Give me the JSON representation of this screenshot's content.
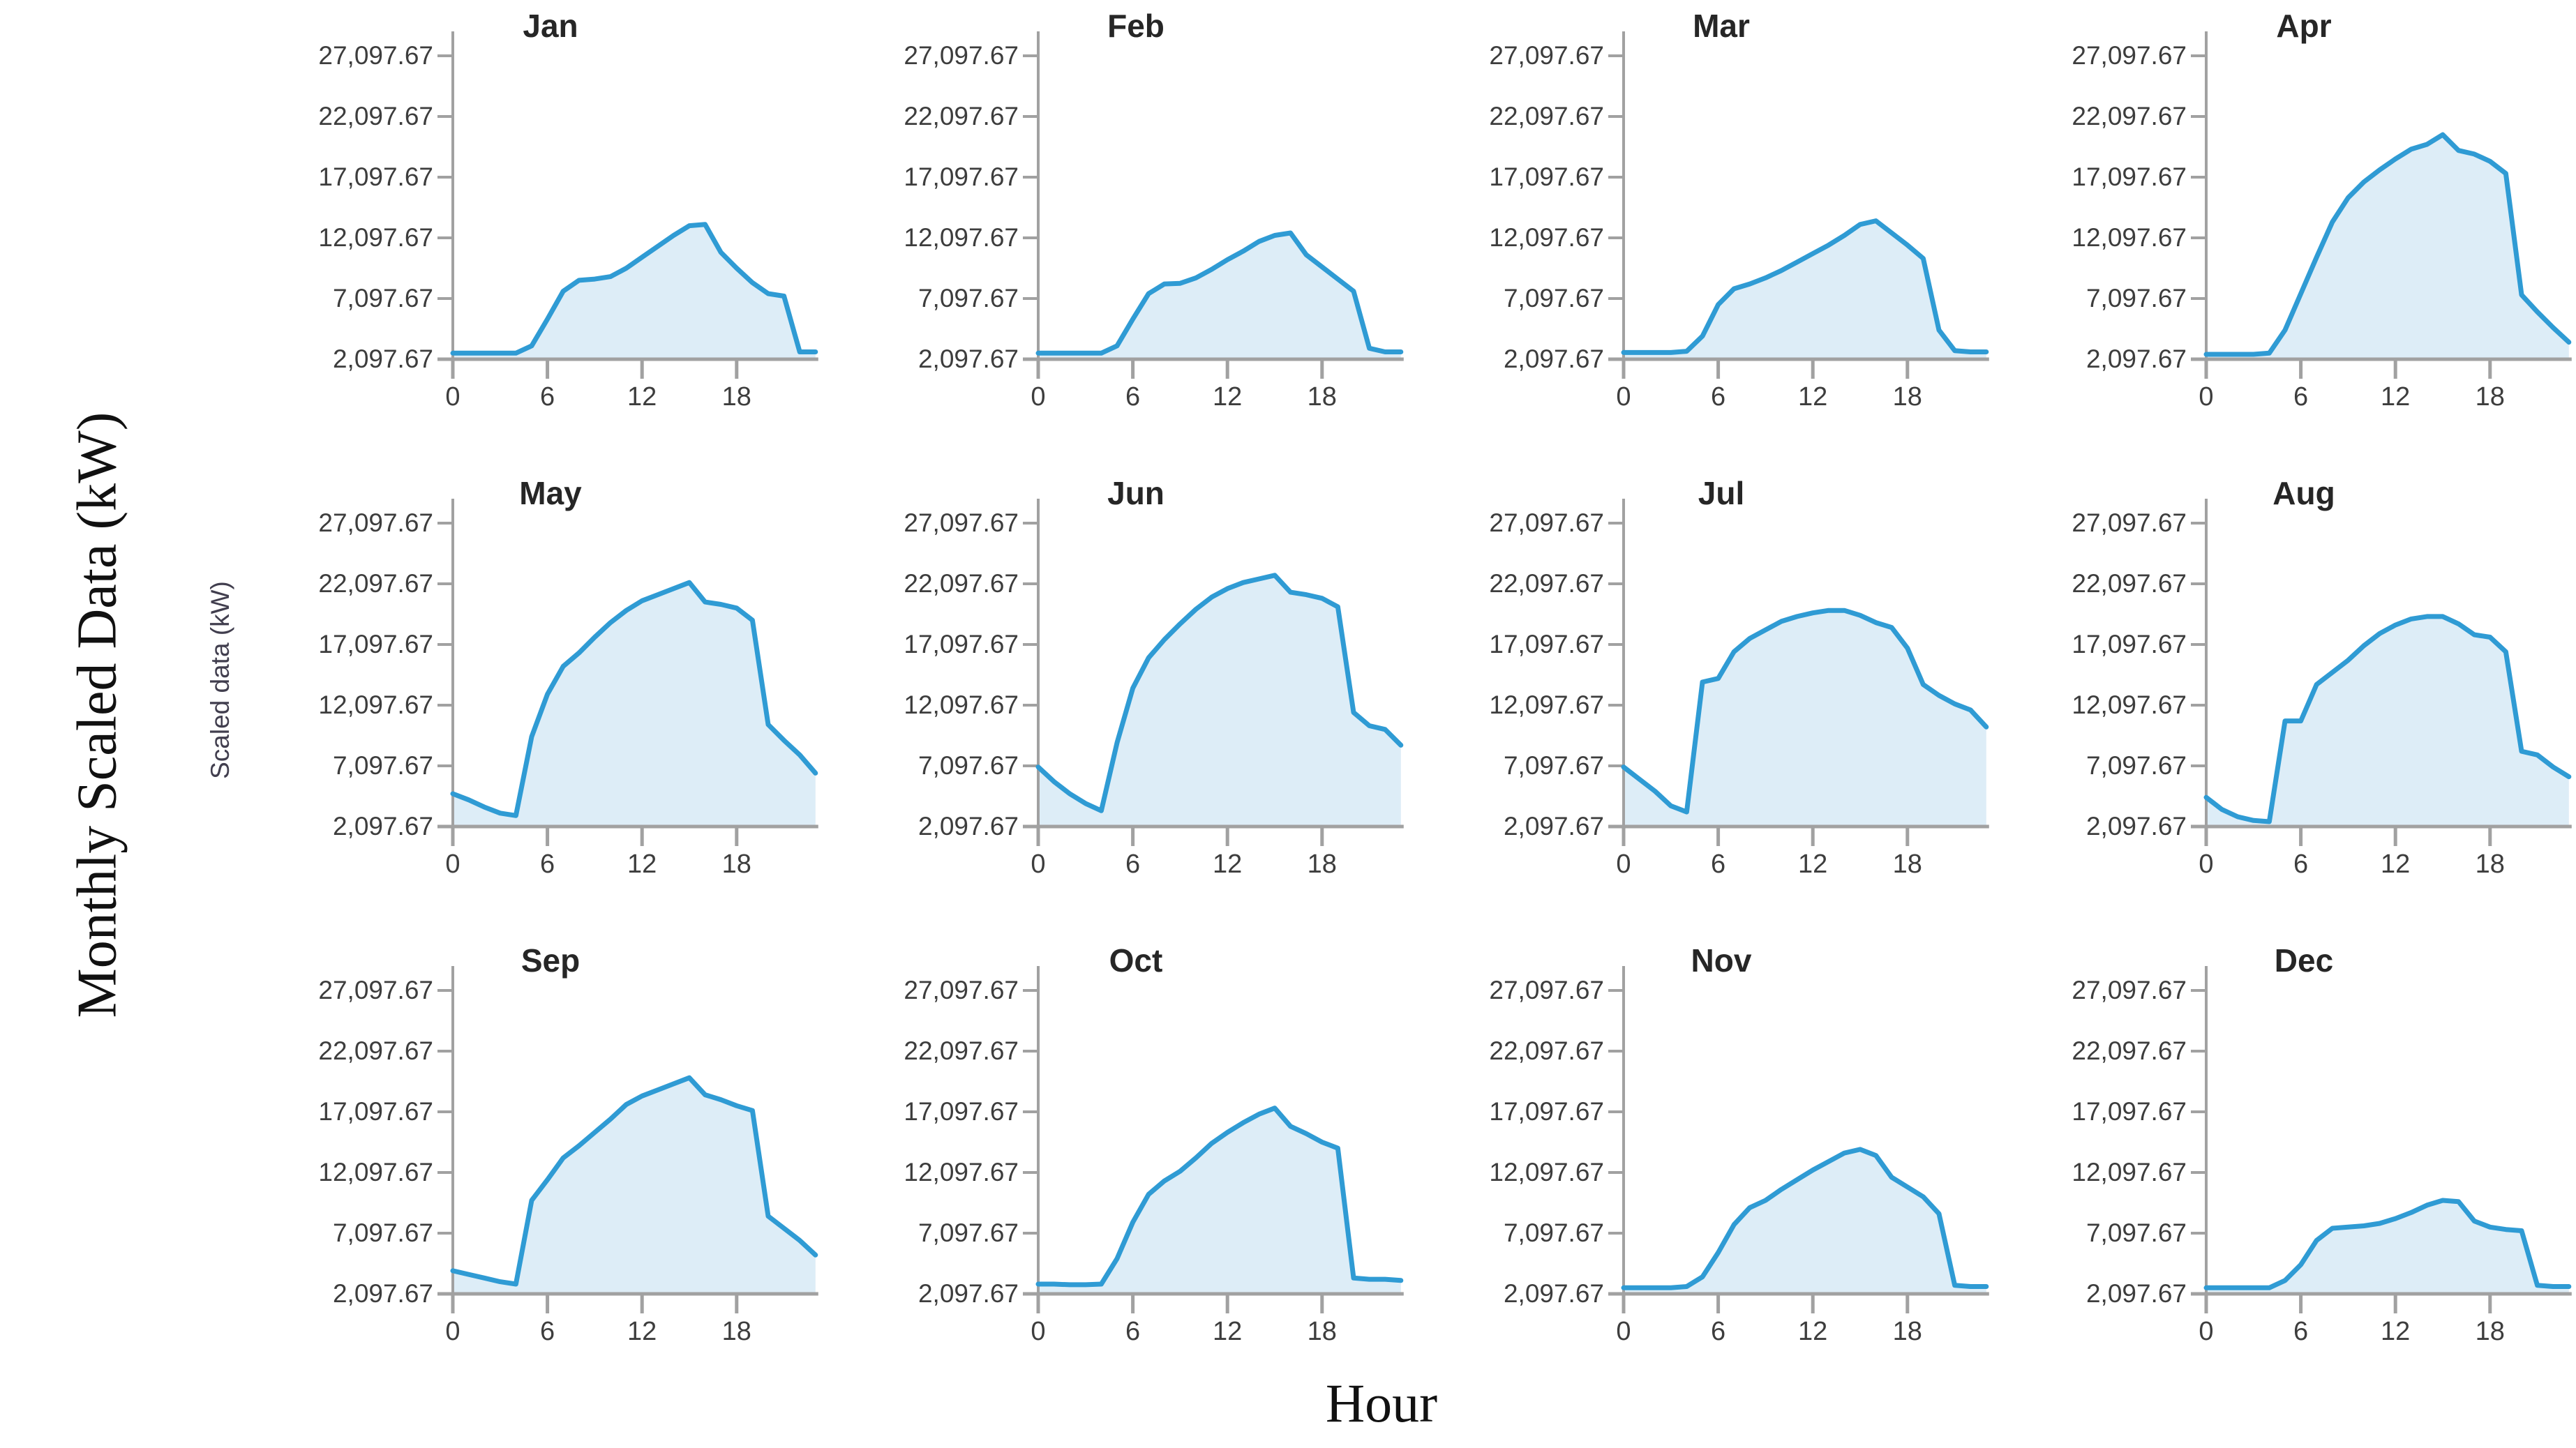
{
  "figure": {
    "outer_ylabel": "Monthly Scaled Data (kW)",
    "inner_ylabel": "Scaled data (kW)",
    "xlabel": "Hour"
  },
  "chart_data": {
    "type": "area",
    "layout": "3 rows x 4 columns of monthly subplots",
    "x": [
      0,
      1,
      2,
      3,
      4,
      5,
      6,
      7,
      8,
      9,
      10,
      11,
      12,
      13,
      14,
      15,
      16,
      17,
      18,
      19,
      20,
      21,
      22,
      23
    ],
    "xlabel": "Hour",
    "ylabel": "Monthly Scaled Data (kW)",
    "inner_ylabel": "Scaled data (kW)",
    "xticks": [
      0,
      6,
      12,
      18
    ],
    "ytick_values": [
      2097.67,
      7097.67,
      12097.67,
      17097.67,
      22097.67,
      27097.67
    ],
    "ytick_labels": [
      "2,097.67",
      "7,097.67",
      "12,097.67",
      "17,097.67",
      "22,097.67",
      "27,097.67"
    ],
    "ylim": [
      2097.67,
      29100
    ],
    "grid": false,
    "legend": "none",
    "colors": {
      "line": "#2f9bd4",
      "fill": "#ddedf7",
      "axis": "#a1a1a1",
      "tick_text": "#3d3d3d",
      "title_text": "#262626"
    },
    "series": [
      {
        "name": "Jan",
        "values": [
          2600,
          2600,
          2600,
          2600,
          2600,
          3200,
          5400,
          7700,
          8600,
          8700,
          8900,
          9600,
          10500,
          11400,
          12300,
          13100,
          13200,
          10900,
          9600,
          8400,
          7500,
          7300,
          2700,
          2700
        ]
      },
      {
        "name": "Feb",
        "values": [
          2600,
          2600,
          2600,
          2600,
          2600,
          3200,
          5400,
          7500,
          8300,
          8350,
          8800,
          9500,
          10300,
          11000,
          11800,
          12300,
          12500,
          10700,
          9700,
          8700,
          7700,
          3000,
          2700,
          2700
        ]
      },
      {
        "name": "Mar",
        "values": [
          2650,
          2650,
          2650,
          2650,
          2750,
          4000,
          6600,
          7900,
          8300,
          8800,
          9400,
          10100,
          10800,
          11500,
          12300,
          13200,
          13500,
          12500,
          11500,
          10400,
          4500,
          2800,
          2700,
          2700
        ]
      },
      {
        "name": "Apr",
        "values": [
          2500,
          2500,
          2500,
          2500,
          2600,
          4500,
          7500,
          10500,
          13400,
          15400,
          16700,
          17700,
          18600,
          19400,
          19800,
          20600,
          19300,
          19000,
          18400,
          17400,
          7400,
          6000,
          4700,
          3500
        ]
      },
      {
        "name": "May",
        "values": [
          4800,
          4300,
          3700,
          3200,
          3000,
          9500,
          13000,
          15300,
          16400,
          17700,
          18900,
          19900,
          20700,
          21200,
          21700,
          22200,
          20600,
          20400,
          20100,
          19100,
          10500,
          9200,
          8000,
          6500
        ]
      },
      {
        "name": "Jun",
        "values": [
          7000,
          5800,
          4800,
          4000,
          3400,
          9000,
          13500,
          16000,
          17500,
          18800,
          20000,
          21000,
          21700,
          22200,
          22500,
          22800,
          21400,
          21200,
          20900,
          20200,
          11500,
          10400,
          10100,
          8800
        ]
      },
      {
        "name": "Jul",
        "values": [
          7000,
          6000,
          5000,
          3800,
          3300,
          14000,
          14300,
          16500,
          17600,
          18300,
          19000,
          19400,
          19700,
          19900,
          19900,
          19500,
          18900,
          18500,
          16800,
          13800,
          12900,
          12200,
          11700,
          10300
        ]
      },
      {
        "name": "Aug",
        "values": [
          4500,
          3500,
          2900,
          2600,
          2500,
          10800,
          10800,
          13800,
          14800,
          15800,
          17000,
          18000,
          18700,
          19200,
          19400,
          19400,
          18800,
          17900,
          17700,
          16500,
          8300,
          8000,
          7000,
          6200
        ]
      },
      {
        "name": "Sep",
        "values": [
          4000,
          3700,
          3400,
          3100,
          2900,
          9800,
          11500,
          13300,
          14300,
          15400,
          16500,
          17700,
          18400,
          18900,
          19400,
          19900,
          18500,
          18100,
          17600,
          17200,
          8500,
          7500,
          6500,
          5300
        ]
      },
      {
        "name": "Oct",
        "values": [
          2900,
          2900,
          2850,
          2850,
          2900,
          5000,
          8000,
          10300,
          11400,
          12200,
          13300,
          14500,
          15400,
          16200,
          16900,
          17400,
          15900,
          15300,
          14600,
          14100,
          3400,
          3300,
          3300,
          3200
        ]
      },
      {
        "name": "Nov",
        "values": [
          2600,
          2600,
          2600,
          2600,
          2700,
          3500,
          5500,
          7800,
          9200,
          9800,
          10700,
          11500,
          12300,
          13000,
          13700,
          14000,
          13500,
          11700,
          10900,
          10100,
          8700,
          2800,
          2700,
          2700
        ]
      },
      {
        "name": "Dec",
        "values": [
          2600,
          2600,
          2600,
          2600,
          2600,
          3200,
          4500,
          6500,
          7500,
          7600,
          7700,
          7900,
          8300,
          8800,
          9400,
          9800,
          9700,
          8100,
          7600,
          7400,
          7300,
          2800,
          2700,
          2700
        ]
      }
    ]
  }
}
